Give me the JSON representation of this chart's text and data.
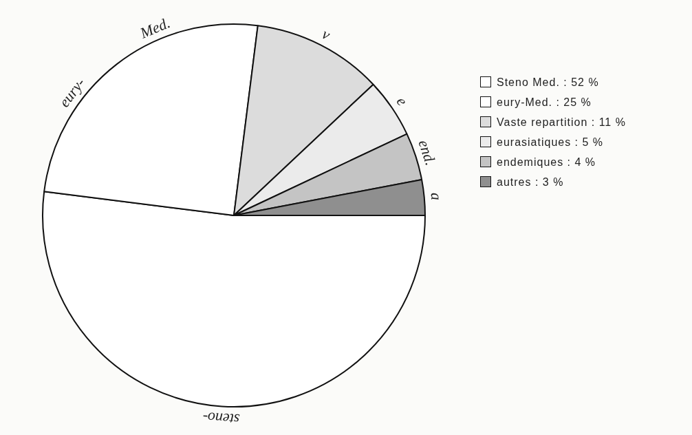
{
  "chart_data": {
    "type": "pie",
    "categories": [
      "Steno Med.",
      "eury-Med.",
      "Vaste repartition",
      "eurasiatiques",
      "endemiques",
      "autres"
    ],
    "values": [
      52,
      25,
      11,
      5,
      4,
      3
    ],
    "value_labels": [
      "52 %",
      "25 %",
      "11 %",
      "5 %",
      "4 %",
      "3 %"
    ],
    "colors": [
      "#ffffff",
      "#ffffff",
      "#dcdcdc",
      "#ebebeb",
      "#c4c4c4",
      "#8f8f8f"
    ],
    "legend": "right",
    "annotations": [
      {
        "text": "steno-",
        "x": "Steno Med."
      },
      {
        "text": "eury-",
        "x": "eury-Med."
      },
      {
        "text": "Med.",
        "x": "eury-Med."
      },
      {
        "text": "v",
        "x": "Vaste repartition"
      },
      {
        "text": "e",
        "x": "eurasiatiques"
      },
      {
        "text": "end.",
        "x": "endemiques"
      },
      {
        "text": "a",
        "x": "autres"
      }
    ]
  }
}
